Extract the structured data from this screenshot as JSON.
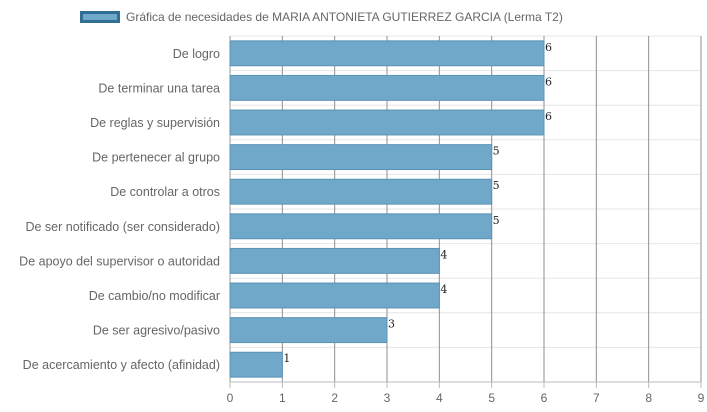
{
  "chart_data": {
    "type": "bar",
    "orientation": "horizontal",
    "legend": {
      "entries": [
        "Gráfica de necesidades de MARIA ANTONIETA GUTIERREZ GARCIA (Lerma T2)"
      ],
      "placement": "top"
    },
    "categories": [
      "De logro",
      "De terminar una tarea",
      "De reglas y supervisión",
      "De pertenecer al grupo",
      "De controlar a otros",
      "De ser notificado (ser considerado)",
      "De apoyo del supervisor o autoridad",
      "De cambio/no modificar",
      "De ser agresivo/pasivo",
      "De acercamiento y afecto (afinidad)"
    ],
    "series": [
      {
        "name": "Gráfica de necesidades de MARIA ANTONIETA GUTIERREZ GARCIA (Lerma T2)",
        "values": [
          6,
          6,
          6,
          5,
          5,
          5,
          4,
          4,
          3,
          1
        ],
        "color": "#6fa8c8",
        "border_color": "#5b93b5"
      }
    ],
    "xlim": [
      0,
      9
    ],
    "xticks": [
      "0",
      "1",
      "2",
      "3",
      "4",
      "5",
      "6",
      "7",
      "8",
      "9"
    ],
    "grid": true,
    "data_labels": true
  }
}
